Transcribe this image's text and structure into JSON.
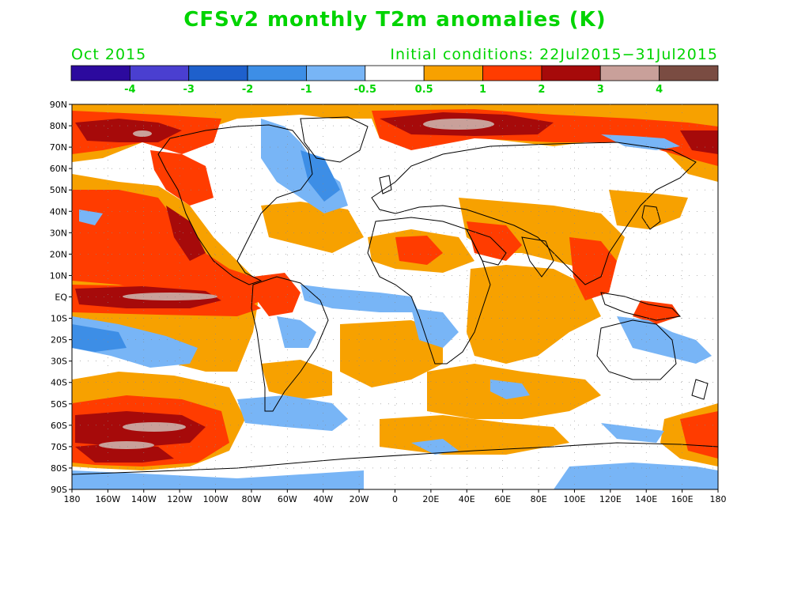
{
  "title": "CFSv2 monthly T2m anomalies (K)",
  "valid_month": "Oct 2015",
  "initial_conditions": "Initial conditions: 22Jul2015−31Jul2015",
  "colors": {
    "text": "#00d400",
    "levels": [
      "#2c0a9e",
      "#4a3fd0",
      "#1e60cc",
      "#3d8ee6",
      "#78b5f6",
      "#ffffff",
      "#f7a100",
      "#ff3c00",
      "#a60a0a",
      "#c9a09a",
      "#7a4c42"
    ]
  },
  "colorbar": {
    "labels": [
      "-4",
      "-3",
      "-2",
      "-1",
      "-0.5",
      "0.5",
      "1",
      "2",
      "3",
      "4"
    ]
  },
  "lat_ticks": [
    "90N",
    "80N",
    "70N",
    "60N",
    "50N",
    "40N",
    "30N",
    "20N",
    "10N",
    "EQ",
    "10S",
    "20S",
    "30S",
    "40S",
    "50S",
    "60S",
    "70S",
    "80S",
    "90S"
  ],
  "lon_ticks": [
    "180",
    "160W",
    "140W",
    "120W",
    "100W",
    "80W",
    "60W",
    "40W",
    "20W",
    "0",
    "20E",
    "40E",
    "60E",
    "80E",
    "100E",
    "120E",
    "140E",
    "160E",
    "180"
  ]
}
